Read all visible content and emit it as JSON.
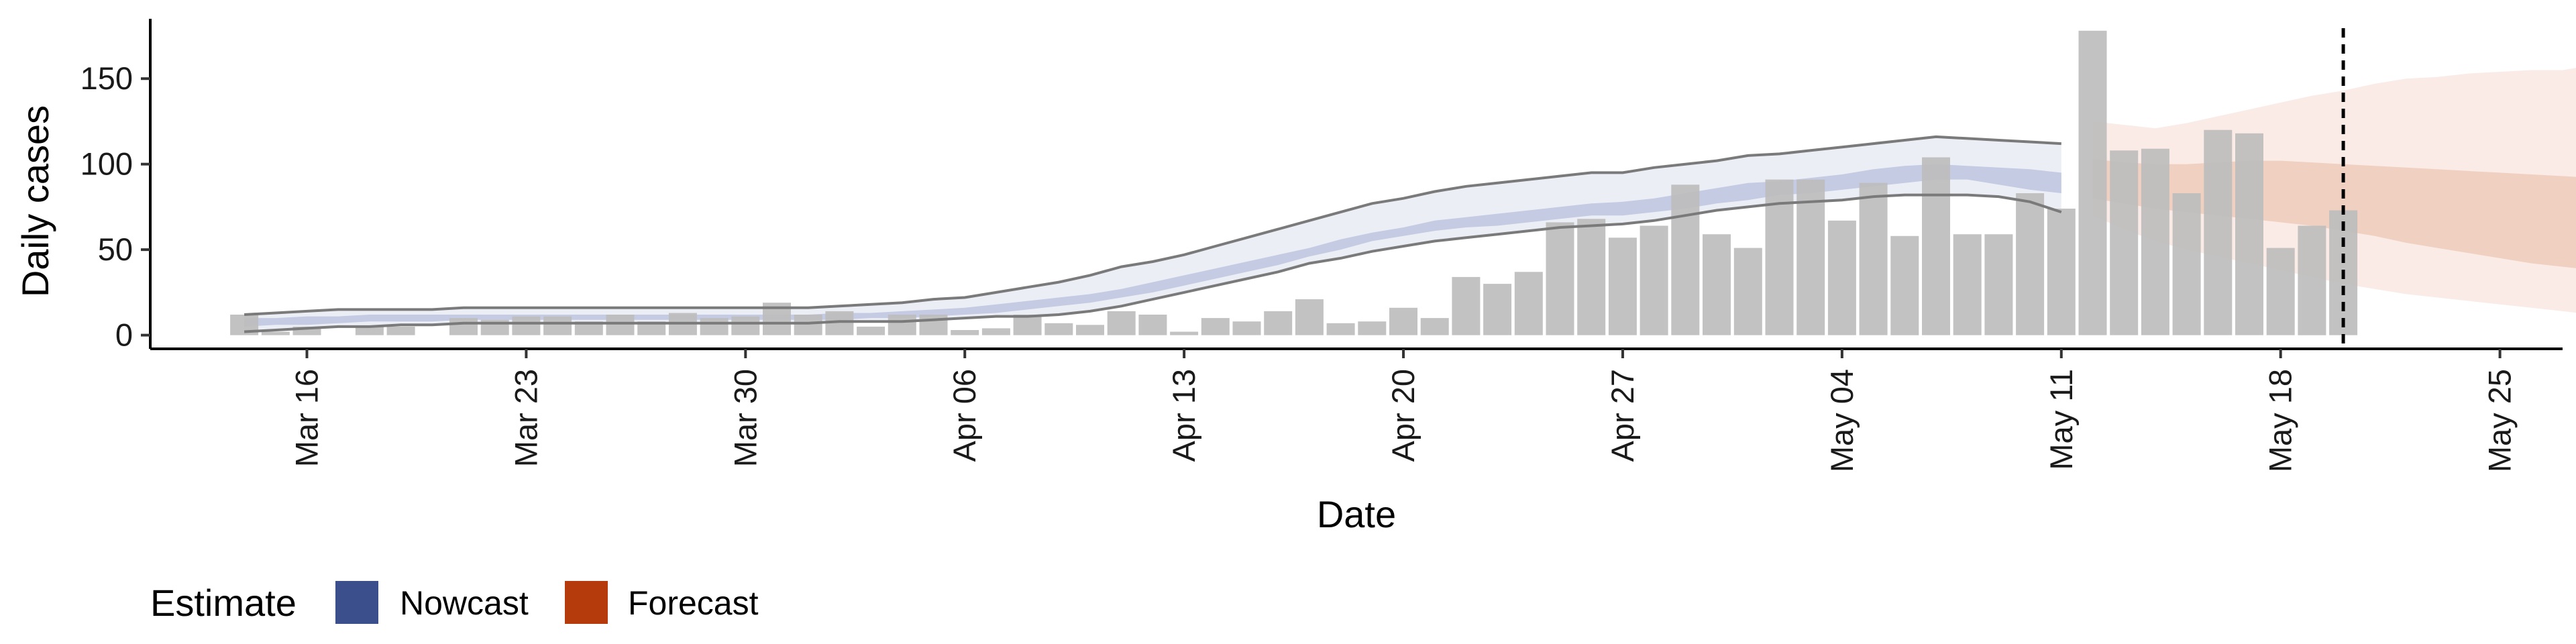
{
  "chart_data": {
    "type": "bar",
    "title": "",
    "xlabel": "Date",
    "ylabel": "Daily cases",
    "ylim": [
      -8,
      185
    ],
    "yticks": [
      0,
      50,
      100,
      150
    ],
    "xlim": [
      "2020-03-11",
      "2020-05-27"
    ],
    "xticks": [
      {
        "date": "2020-03-16",
        "label": "Mar 16"
      },
      {
        "date": "2020-03-23",
        "label": "Mar 23"
      },
      {
        "date": "2020-03-30",
        "label": "Mar 30"
      },
      {
        "date": "2020-04-06",
        "label": "Apr 06"
      },
      {
        "date": "2020-04-13",
        "label": "Apr 13"
      },
      {
        "date": "2020-04-20",
        "label": "Apr 20"
      },
      {
        "date": "2020-04-27",
        "label": "Apr 27"
      },
      {
        "date": "2020-05-04",
        "label": "May 04"
      },
      {
        "date": "2020-05-11",
        "label": "May 11"
      },
      {
        "date": "2020-05-18",
        "label": "May 18"
      },
      {
        "date": "2020-05-25",
        "label": "May 25"
      }
    ],
    "grid": false,
    "legend_position": "bottom-left",
    "legend": {
      "title": "Estimate",
      "items": [
        {
          "label": "Nowcast",
          "color": "#3a4f8c"
        },
        {
          "label": "Forecast",
          "color": "#b53a0c"
        }
      ]
    },
    "colors": {
      "bars": "#bdbdbd",
      "nowcast_outer": "#eceef6",
      "nowcast_inner": "#c4cbe3",
      "forecast_outer": "#faebe6",
      "forecast_inner": "#f0d0c1",
      "bound_lines": "#7a7a7a",
      "dashed_line": "#000000"
    },
    "start_date": "2020-03-14",
    "daily_cases": [
      12,
      2,
      5,
      0,
      5,
      5,
      0,
      10,
      9,
      11,
      11,
      8,
      12,
      8,
      13,
      10,
      11,
      19,
      12,
      14,
      5,
      12,
      12,
      3,
      4,
      12,
      7,
      6,
      14,
      12,
      2,
      10,
      8,
      14,
      21,
      7,
      8,
      16,
      10,
      34,
      30,
      37,
      66,
      68,
      57,
      64,
      88,
      59,
      51,
      91,
      91,
      67,
      89,
      58,
      104,
      59,
      59,
      83,
      74,
      178,
      108,
      109,
      83,
      120,
      118,
      51,
      64,
      73
    ],
    "nowcast": {
      "start_date": "2020-03-14",
      "outer_upper": [
        12,
        13,
        14,
        15,
        15,
        15,
        15,
        16,
        16,
        16,
        16,
        16,
        16,
        16,
        16,
        16,
        16,
        16,
        16,
        17,
        18,
        19,
        21,
        22,
        25,
        28,
        31,
        35,
        40,
        43,
        47,
        52,
        57,
        62,
        67,
        72,
        77,
        80,
        84,
        87,
        89,
        91,
        93,
        95,
        95,
        98,
        100,
        102,
        105,
        106,
        108,
        110,
        112,
        114,
        116,
        115,
        114,
        113,
        112
      ],
      "outer_lower": [
        2,
        3,
        4,
        5,
        5,
        6,
        6,
        7,
        7,
        7,
        7,
        7,
        7,
        7,
        7,
        7,
        7,
        7,
        7,
        8,
        8,
        8,
        9,
        10,
        11,
        11,
        12,
        14,
        17,
        21,
        25,
        29,
        33,
        37,
        42,
        45,
        49,
        52,
        55,
        57,
        59,
        61,
        63,
        64,
        65,
        67,
        70,
        73,
        75,
        77,
        78,
        79,
        81,
        82,
        82,
        82,
        81,
        78,
        72
      ],
      "inner_upper": [
        10,
        10,
        11,
        11,
        12,
        12,
        12,
        12,
        12,
        12,
        12,
        12,
        12,
        12,
        12,
        12,
        12,
        12,
        12,
        13,
        13,
        14,
        15,
        16,
        18,
        20,
        22,
        24,
        27,
        31,
        35,
        39,
        43,
        47,
        51,
        56,
        60,
        63,
        67,
        69,
        71,
        73,
        75,
        77,
        78,
        80,
        83,
        86,
        89,
        90,
        92,
        94,
        97,
        99,
        100,
        99,
        98,
        97,
        95
      ],
      "inner_lower": [
        5,
        6,
        6,
        7,
        8,
        8,
        8,
        9,
        9,
        9,
        9,
        9,
        9,
        9,
        9,
        9,
        9,
        9,
        9,
        9,
        10,
        10,
        11,
        12,
        13,
        15,
        17,
        19,
        22,
        25,
        29,
        33,
        37,
        41,
        46,
        50,
        55,
        58,
        61,
        63,
        64,
        66,
        68,
        70,
        70,
        72,
        74,
        77,
        79,
        82,
        83,
        85,
        87,
        89,
        91,
        91,
        88,
        85,
        83
      ]
    },
    "forecast": {
      "start_date": "2020-05-12",
      "outer_upper": [
        125,
        123,
        121,
        124,
        128,
        132,
        136,
        140,
        143,
        147,
        150,
        151,
        153,
        154,
        155,
        155,
        158
      ],
      "outer_lower": [
        70,
        62,
        55,
        50,
        46,
        42,
        38,
        34,
        30,
        27,
        24,
        22,
        20,
        18,
        16,
        14,
        12
      ],
      "inner_upper": [
        103,
        101,
        100,
        100,
        101,
        102,
        102,
        101,
        100,
        99,
        98,
        97,
        96,
        95,
        94,
        93,
        92
      ],
      "inner_lower": [
        80,
        77,
        74,
        72,
        70,
        68,
        66,
        64,
        61,
        58,
        54,
        51,
        48,
        45,
        42,
        40,
        38
      ]
    },
    "dashed_vline_date": "2020-05-20"
  }
}
